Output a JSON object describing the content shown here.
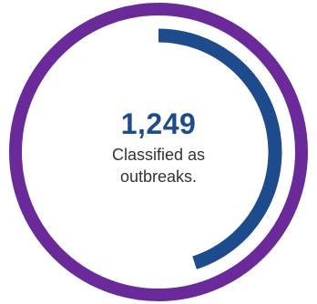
{
  "stat": {
    "number": "1,249",
    "caption_line1": "Classified as",
    "caption_line2": "outbreaks.",
    "progress_fraction": 0.45
  },
  "colors": {
    "outer_ring": "#6a2a99",
    "progress_arc": "#1e4b8c",
    "number": "#1e4b8c",
    "caption": "#333333"
  }
}
